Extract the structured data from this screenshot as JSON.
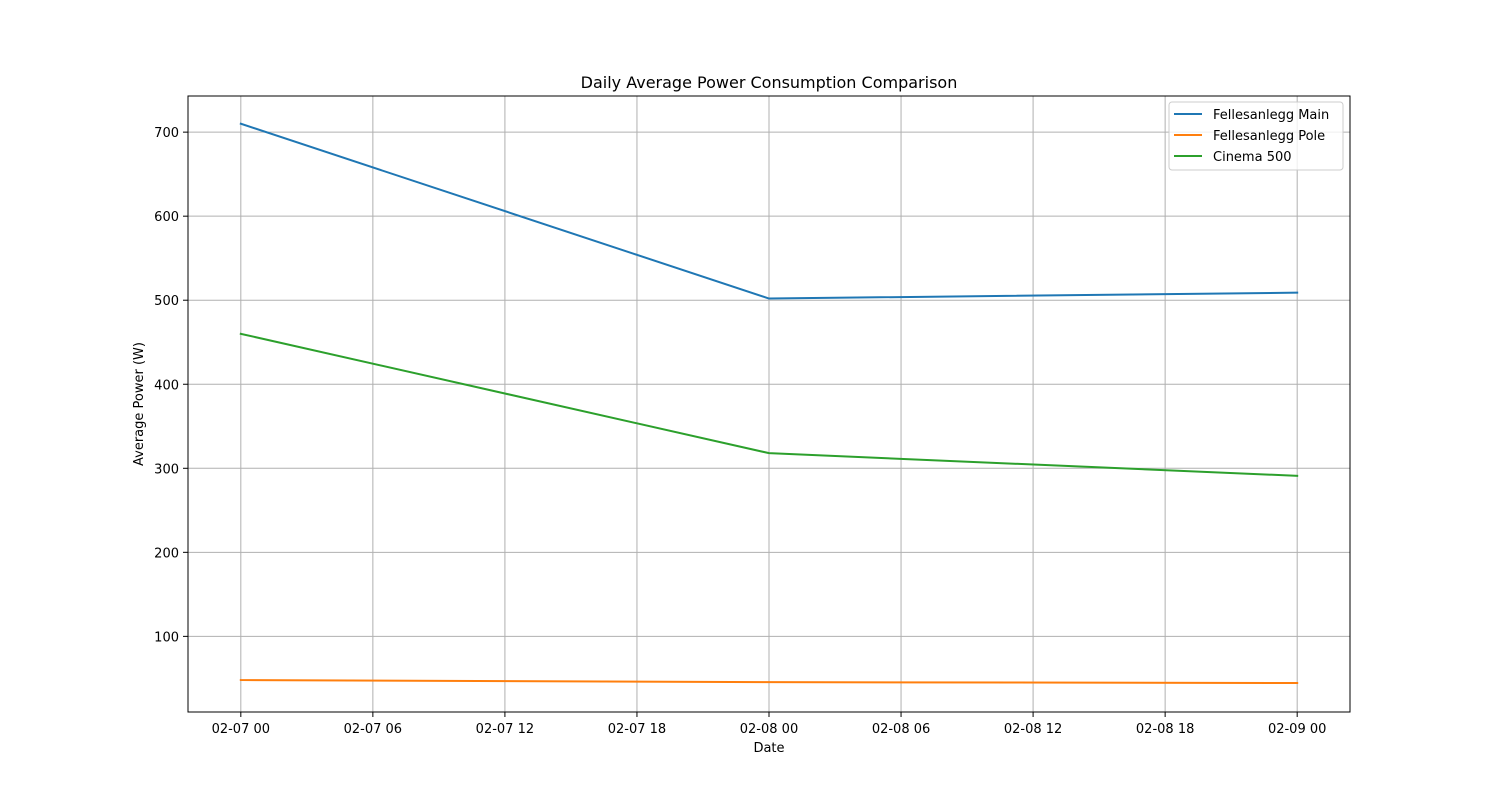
{
  "chart_data": {
    "type": "line",
    "title": "Daily Average Power Consumption Comparison",
    "xlabel": "Date",
    "ylabel": "Average Power (W)",
    "x": [
      "2024-02-07",
      "2024-02-08",
      "2024-02-09"
    ],
    "x_ticks": [
      "02-07 00",
      "02-07 06",
      "02-07 12",
      "02-07 18",
      "02-08 00",
      "02-08 06",
      "02-08 12",
      "02-08 18",
      "02-09 00"
    ],
    "y_ticks": [
      100,
      200,
      300,
      400,
      500,
      600,
      700
    ],
    "ylim": [
      10,
      743
    ],
    "grid": true,
    "legend_position": "top-right",
    "series": [
      {
        "name": "Fellesanlegg Main",
        "color": "#1f77b4",
        "values": [
          710,
          502,
          509
        ]
      },
      {
        "name": "Fellesanlegg Pole",
        "color": "#ff7f0e",
        "values": [
          48,
          45.5,
          44.5
        ]
      },
      {
        "name": "Cinema 500",
        "color": "#2ca02c",
        "values": [
          460,
          318,
          291
        ]
      }
    ]
  }
}
